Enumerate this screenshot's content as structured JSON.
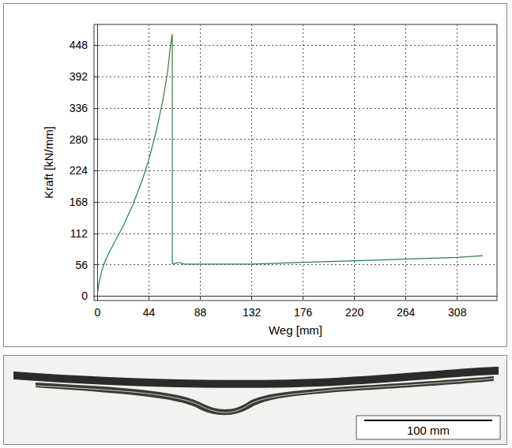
{
  "chart_data": {
    "type": "line",
    "x_label": "Weg [mm]",
    "y_label": "Kraft [kN/mm]",
    "x": [
      0,
      1,
      3,
      6,
      10,
      15,
      22,
      30,
      38,
      44,
      50,
      56,
      60,
      62,
      64,
      64,
      66,
      68,
      70,
      74,
      88,
      132,
      176,
      220,
      264,
      308,
      330
    ],
    "values": [
      5,
      20,
      40,
      60,
      78,
      98,
      125,
      162,
      205,
      244,
      292,
      350,
      400,
      440,
      468,
      58,
      58,
      59,
      60,
      57,
      57,
      57,
      60,
      63,
      66,
      69,
      72
    ],
    "color": "#2e7d4f",
    "xlim": [
      -3,
      342
    ],
    "xticks": [
      0,
      44,
      88,
      132,
      176,
      220,
      264,
      308
    ],
    "ylim": [
      -8,
      485
    ],
    "yticks": [
      0,
      56,
      112,
      168,
      224,
      280,
      336,
      392,
      448
    ],
    "grid": true
  },
  "photo": {
    "scale_bar_label": "100 mm"
  }
}
